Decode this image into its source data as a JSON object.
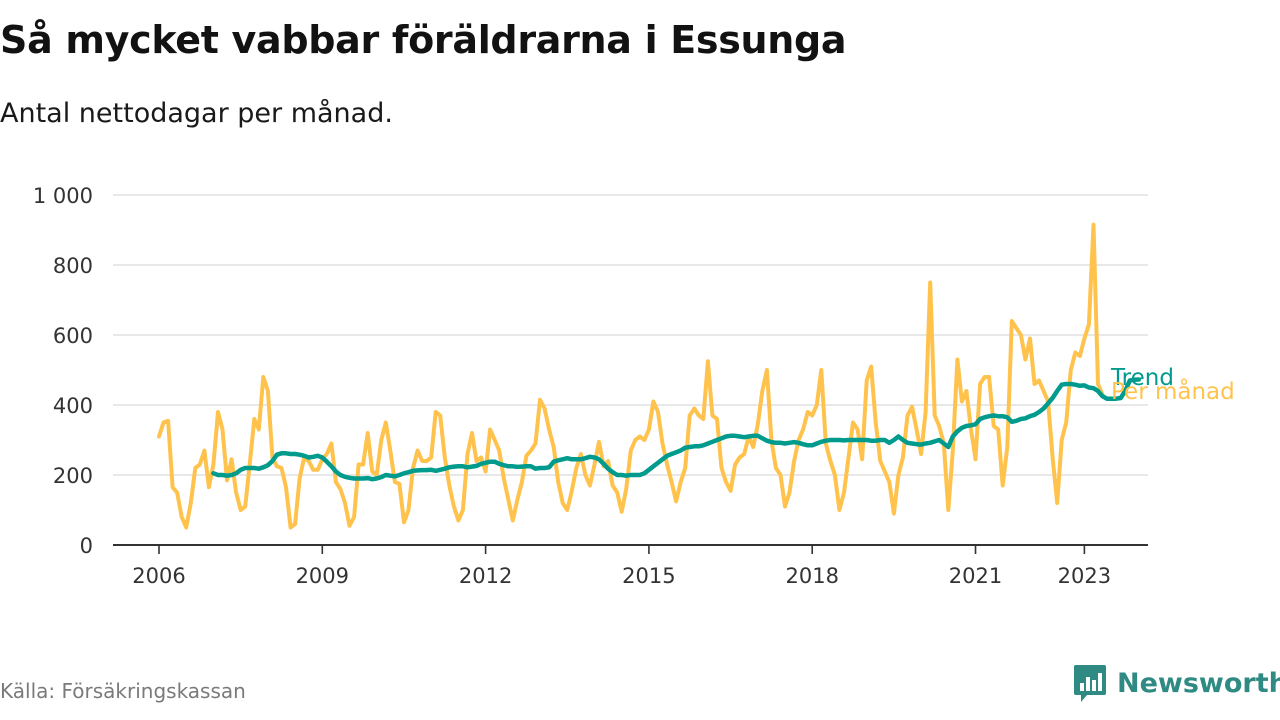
{
  "title": "Så mycket vabbar föräldrarna i Essunga",
  "subtitle": "Antal nettodagar per månad.",
  "source": "Källa: Försäkringskassan",
  "brand": {
    "name": "Newsworthy",
    "icon": "bar-chart-speech-bubble-icon",
    "color": "#2e8a82"
  },
  "chart_data": {
    "type": "line",
    "title": "Så mycket vabbar föräldrarna i Essunga",
    "subtitle": "Antal nettodagar per månad.",
    "xlabel": "",
    "ylabel": "",
    "x_range": [
      2006,
      2023.25
    ],
    "ylim": [
      0,
      1000
    ],
    "y_ticks": [
      0,
      200,
      400,
      600,
      800,
      1000
    ],
    "y_tick_labels": [
      "0",
      "200",
      "400",
      "600",
      "800",
      "1 000"
    ],
    "x_ticks": [
      2006,
      2009,
      2012,
      2015,
      2018,
      2021,
      2023
    ],
    "x_tick_labels": [
      "2006",
      "2009",
      "2012",
      "2015",
      "2018",
      "2021",
      "2023"
    ],
    "grid": "horizontal",
    "legend": "direct labels at line ends (right)",
    "series": [
      {
        "name": "Per månad",
        "color": "#ffc34d",
        "x_start": "2006-01",
        "step": "month",
        "values": [
          310,
          350,
          355,
          165,
          150,
          80,
          50,
          120,
          220,
          230,
          270,
          165,
          230,
          380,
          330,
          185,
          245,
          150,
          100,
          110,
          230,
          360,
          330,
          480,
          440,
          250,
          225,
          220,
          165,
          50,
          60,
          190,
          250,
          240,
          215,
          215,
          245,
          260,
          290,
          180,
          160,
          120,
          55,
          80,
          230,
          230,
          320,
          210,
          200,
          300,
          350,
          270,
          180,
          175,
          65,
          100,
          220,
          270,
          240,
          240,
          250,
          380,
          370,
          250,
          170,
          110,
          70,
          100,
          260,
          320,
          240,
          250,
          210,
          330,
          300,
          270,
          190,
          130,
          70,
          130,
          180,
          255,
          270,
          290,
          415,
          390,
          330,
          280,
          180,
          120,
          100,
          155,
          220,
          260,
          200,
          170,
          230,
          295,
          225,
          240,
          170,
          150,
          95,
          160,
          270,
          300,
          310,
          300,
          330,
          410,
          380,
          290,
          230,
          180,
          125,
          180,
          220,
          370,
          390,
          370,
          360,
          525,
          370,
          360,
          220,
          180,
          155,
          230,
          250,
          260,
          310,
          280,
          345,
          440,
          500,
          300,
          220,
          200,
          110,
          150,
          240,
          300,
          330,
          380,
          370,
          400,
          500,
          290,
          240,
          200,
          100,
          150,
          250,
          350,
          330,
          245,
          470,
          510,
          350,
          240,
          210,
          180,
          90,
          200,
          250,
          370,
          395,
          330,
          260,
          380,
          750,
          370,
          340,
          290,
          100,
          270,
          530,
          410,
          440,
          330,
          245,
          460,
          480,
          480,
          340,
          330,
          170,
          280,
          640,
          620,
          600,
          530,
          590,
          460,
          470,
          440,
          410,
          250,
          120,
          300,
          350,
          500,
          550,
          540,
          590,
          630,
          915,
          460,
          430
        ]
      },
      {
        "name": "Trend",
        "color": "#009b8d",
        "x_start": "2007-01",
        "step": "month",
        "values": [
          205,
          200,
          200,
          198,
          200,
          205,
          215,
          220,
          220,
          220,
          218,
          222,
          228,
          240,
          258,
          262,
          262,
          260,
          260,
          258,
          255,
          250,
          252,
          255,
          250,
          238,
          225,
          210,
          200,
          195,
          192,
          190,
          190,
          190,
          191,
          188,
          190,
          194,
          200,
          198,
          196,
          200,
          205,
          208,
          212,
          213,
          214,
          214,
          215,
          212,
          215,
          218,
          222,
          224,
          225,
          225,
          222,
          224,
          226,
          232,
          235,
          238,
          238,
          232,
          228,
          225,
          225,
          223,
          224,
          225,
          225,
          218,
          220,
          220,
          222,
          238,
          242,
          245,
          248,
          245,
          245,
          245,
          248,
          252,
          250,
          245,
          232,
          218,
          208,
          200,
          200,
          198,
          200,
          200,
          200,
          205,
          215,
          225,
          235,
          245,
          255,
          260,
          265,
          270,
          278,
          280,
          282,
          282,
          285,
          290,
          295,
          300,
          305,
          310,
          312,
          312,
          310,
          308,
          310,
          312,
          312,
          305,
          298,
          294,
          292,
          292,
          290,
          292,
          294,
          292,
          288,
          285,
          285,
          290,
          295,
          298,
          300,
          300,
          300,
          299,
          300,
          300,
          300,
          300,
          300,
          298,
          298,
          300,
          300,
          292,
          300,
          310,
          300,
          292,
          290,
          288,
          287,
          290,
          292,
          296,
          300,
          290,
          280,
          310,
          325,
          335,
          340,
          342,
          345,
          360,
          365,
          368,
          370,
          368,
          368,
          365,
          352,
          355,
          360,
          362,
          368,
          372,
          380,
          390,
          405,
          420,
          440,
          458,
          460,
          460,
          458,
          455,
          456,
          450,
          448,
          440,
          425,
          418,
          418,
          418,
          420,
          440,
          470,
          472,
          473
        ]
      }
    ]
  }
}
